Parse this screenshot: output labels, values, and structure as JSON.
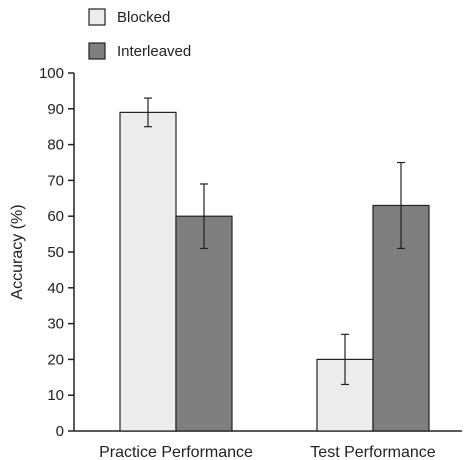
{
  "chart_data": {
    "type": "bar",
    "categories": [
      "Practice Performance",
      "Test Performance"
    ],
    "series": [
      {
        "name": "Blocked",
        "values": [
          89,
          20
        ],
        "errors": [
          4,
          7
        ],
        "color": "#ececec"
      },
      {
        "name": "Interleaved",
        "values": [
          60,
          63
        ],
        "errors": [
          9,
          12
        ],
        "color": "#7f7f7f"
      }
    ],
    "ylabel": "Accuracy (%)",
    "xlabel": "",
    "ylim": [
      0,
      100
    ],
    "yticks": [
      0,
      10,
      20,
      30,
      40,
      50,
      60,
      70,
      80,
      90,
      100
    ],
    "legend": "top-left",
    "grid": false
  }
}
